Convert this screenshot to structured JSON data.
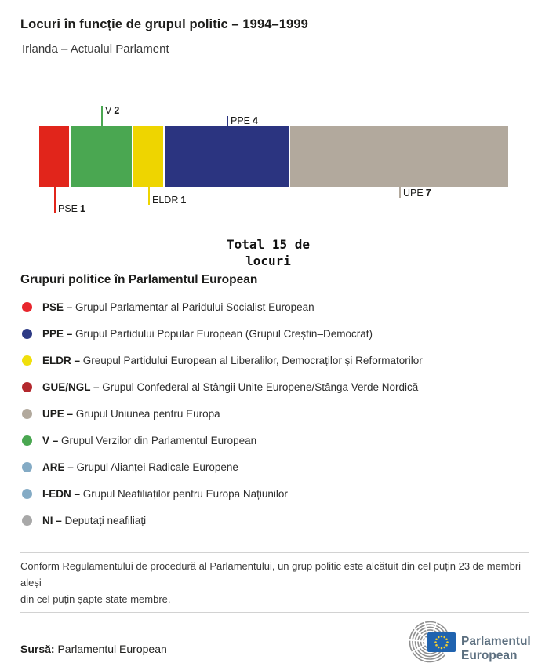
{
  "header": {
    "title": "Locuri în funcție de grupul politic – 1994–1999",
    "subtitle": "Irlanda – Actualul Parlament"
  },
  "chart_data": {
    "type": "bar",
    "title": "Locuri în funcție de grupul politic – 1994–1999",
    "subtitle": "Irlanda – Actualul Parlament",
    "total_seats": 15,
    "total_label": "Total 15 de\nlocuri",
    "categories": [
      "PSE",
      "V",
      "ELDR",
      "PPE",
      "UPE"
    ],
    "values": [
      1,
      2,
      1,
      4,
      7
    ],
    "segments": [
      {
        "group": "PSE",
        "seats": 1,
        "color": "#e1251b",
        "callout": "below"
      },
      {
        "group": "V",
        "seats": 2,
        "color": "#4aa751",
        "callout": "above"
      },
      {
        "group": "ELDR",
        "seats": 1,
        "color": "#eed500",
        "callout": "below"
      },
      {
        "group": "PPE",
        "seats": 4,
        "color": "#2b3480",
        "callout": "above"
      },
      {
        "group": "UPE",
        "seats": 7,
        "color": "#b2a99d",
        "callout": "below"
      }
    ]
  },
  "legend": {
    "heading": "Grupuri politice în Parlamentul European",
    "items": [
      {
        "abbr": "PSE –",
        "desc": "Grupul Parlamentar al Paridului Socialist European",
        "color": "#e8262d"
      },
      {
        "abbr": "PPE –",
        "desc": "Grupul Partidului Popular European (Grupul Creștin–Democrat)",
        "color": "#2d3a85"
      },
      {
        "abbr": "ELDR –",
        "desc": "Greupul Partidului European al Liberalilor, Democraților și Reformatorilor",
        "color": "#f0df0c"
      },
      {
        "abbr": "GUE/NGL –",
        "desc": "Grupul Confederal al Stângii Unite Europene/Stânga Verde Nordică",
        "color": "#b3282d"
      },
      {
        "abbr": "UPE –",
        "desc": "Grupul Uniunea pentru Europa",
        "color": "#b2a99d"
      },
      {
        "abbr": "V –",
        "desc": "Grupul Verzilor din Parlamentul European",
        "color": "#4aa751"
      },
      {
        "abbr": "ARE –",
        "desc": "Grupul Alianței Radicale Europene",
        "color": "#84abc5"
      },
      {
        "abbr": "I-EDN –",
        "desc": "Grupul Neafiliaților pentru Europa Națiunilor",
        "color": "#84abc5"
      },
      {
        "abbr": "NI –",
        "desc": "Deputați neafiliați",
        "color": "#a8a8a8"
      }
    ]
  },
  "footer": {
    "note": "Conform Regulamentului de procedură al Parlamentului, un grup politic este alcătuit din cel puțin 23 de membri aleși\ndin cel puțin șapte state membre.",
    "source_label": "Sursă:",
    "source_value": " Parlamentul European",
    "logo_line1": "Parlamentul",
    "logo_line2": "European",
    "logo_colors": {
      "arc_gray": "#8f8f8f",
      "flag_blue": "#2063af",
      "star_yellow": "#f8d12e",
      "text_slate": "#5d7080"
    }
  }
}
